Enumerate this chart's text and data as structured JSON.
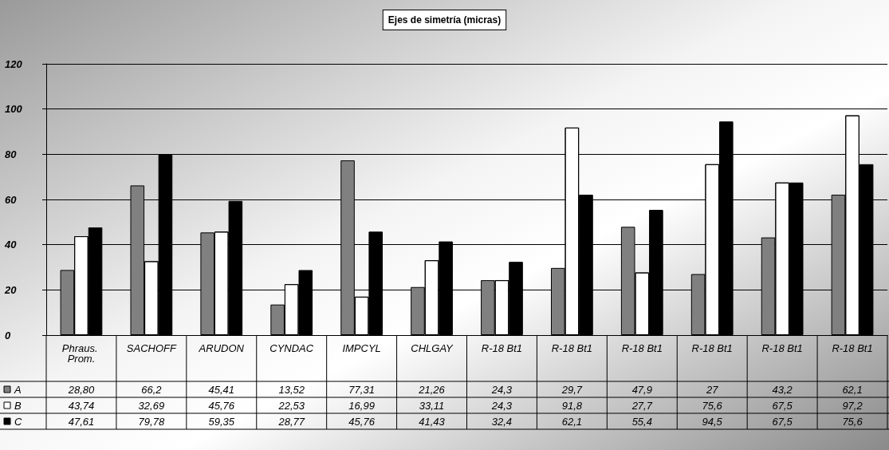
{
  "chart_data": {
    "type": "bar",
    "title": "Ejes de simetría (micras)",
    "categories": [
      "Phraus. Prom.",
      "SACHOFF",
      "ARUDON",
      "CYNDAC",
      "IMPCYL",
      "CHLGAY",
      "R-18 Bt1",
      "R-18 Bt1",
      "R-18 Bt1",
      "R-18 Bt1",
      "R-18 Bt1",
      "R-18 Bt1"
    ],
    "series": [
      {
        "name": "A",
        "color": "#808080",
        "values": [
          28.8,
          66.2,
          45.41,
          13.52,
          77.31,
          21.26,
          24.3,
          29.7,
          47.9,
          27,
          43.2,
          62.1
        ],
        "value_labels": [
          "28,80",
          "66,2",
          "45,41",
          "13,52",
          "77,31",
          "21,26",
          "24,3",
          "29,7",
          "47,9",
          "27",
          "43,2",
          "62,1"
        ]
      },
      {
        "name": "B",
        "color": "#ffffff",
        "values": [
          43.74,
          32.69,
          45.76,
          22.53,
          16.99,
          33.11,
          24.3,
          91.8,
          27.7,
          75.6,
          67.5,
          97.2
        ],
        "value_labels": [
          "43,74",
          "32,69",
          "45,76",
          "22,53",
          "16,99",
          "33,11",
          "24,3",
          "91,8",
          "27,7",
          "75,6",
          "67,5",
          "97,2"
        ]
      },
      {
        "name": "C",
        "color": "#000000",
        "values": [
          47.61,
          79.78,
          59.35,
          28.77,
          45.76,
          41.43,
          32.4,
          62.1,
          55.4,
          94.5,
          67.5,
          75.6
        ],
        "value_labels": [
          "47,61",
          "79,78",
          "59,35",
          "28,77",
          "45,76",
          "41,43",
          "32,4",
          "62,1",
          "55,4",
          "94,5",
          "67,5",
          "75,6"
        ]
      }
    ],
    "ylim": [
      0,
      120
    ],
    "yticks": [
      0,
      20,
      40,
      60,
      80,
      100,
      120
    ],
    "grid": "y",
    "legend": "bottom"
  }
}
